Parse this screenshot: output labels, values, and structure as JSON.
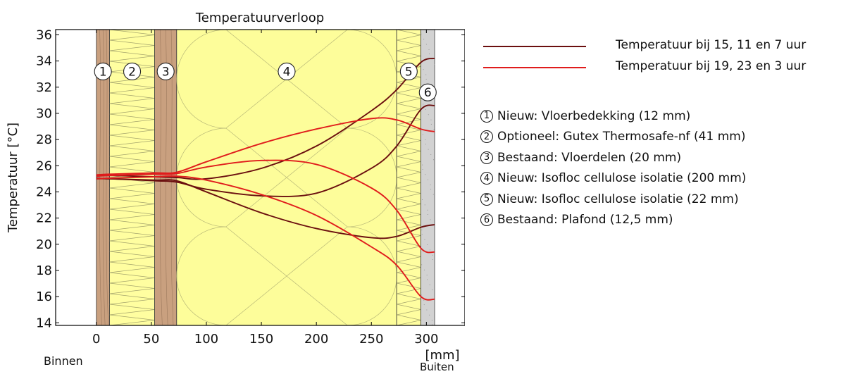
{
  "chart_data": {
    "type": "line",
    "title": "Temperatuurverloop",
    "xlabel": "[mm]",
    "ylabel": "Temperatuur [°C]",
    "xlim": [
      -37,
      335
    ],
    "ylim": [
      13.8,
      36.4
    ],
    "xticks": [
      0,
      50,
      100,
      150,
      200,
      250,
      300
    ],
    "yticks": [
      14,
      16,
      18,
      20,
      22,
      24,
      26,
      28,
      30,
      32,
      34,
      36
    ],
    "inner_label": "Binnen",
    "outer_label": "Buiten",
    "grid": false,
    "legend_position": "right",
    "legend": [
      {
        "label": "Temperatuur bij 15, 11 en 7 uur",
        "color": "#6b0f0f"
      },
      {
        "label": "Temperatuur bij 19, 23 en 3 uur",
        "color": "#e01c1c"
      }
    ],
    "layers": [
      {
        "num": "1",
        "name": "Nieuw: Vloerbedekking (12 mm)",
        "x0": 0,
        "x1": 12,
        "kind": "wood",
        "label_y": 33.2
      },
      {
        "num": "2",
        "name": "Optioneel: Gutex Thermosafe-nf (41 mm)",
        "x0": 12,
        "x1": 53,
        "kind": "insulation",
        "label_y": 33.2
      },
      {
        "num": "3",
        "name": "Bestaand: Vloerdelen (20 mm)",
        "x0": 53,
        "x1": 73,
        "kind": "wood",
        "label_y": 33.2
      },
      {
        "num": "4",
        "name": "Nieuw: Isofloc cellulose isolatie (200 mm)",
        "x0": 73,
        "x1": 273,
        "kind": "cellulose",
        "label_y": 33.2
      },
      {
        "num": "5",
        "name": "Nieuw: Isofloc cellulose isolatie (22 mm)",
        "x0": 273,
        "x1": 295,
        "kind": "insulation",
        "label_y": 33.2
      },
      {
        "num": "6",
        "name": "Bestaand: Plafond (12,5 mm)",
        "x0": 295,
        "x1": 307.5,
        "kind": "plaster",
        "label_y": 31.6
      }
    ],
    "series": [
      {
        "group": "dark",
        "color": "#6b0f0f",
        "x": [
          0,
          12,
          53,
          73,
          100,
          150,
          200,
          250,
          273,
          295,
          307.5
        ],
        "y": [
          25.2,
          25.25,
          25.15,
          25.1,
          25.0,
          25.8,
          27.5,
          30.2,
          31.8,
          33.9,
          34.2
        ]
      },
      {
        "group": "dark",
        "color": "#6b0f0f",
        "x": [
          0,
          12,
          53,
          73,
          100,
          150,
          200,
          250,
          273,
          295,
          307.5
        ],
        "y": [
          25.0,
          25.0,
          24.85,
          24.75,
          24.2,
          23.7,
          23.9,
          25.8,
          27.5,
          30.3,
          30.6
        ]
      },
      {
        "group": "dark",
        "color": "#6b0f0f",
        "x": [
          0,
          12,
          53,
          73,
          100,
          150,
          200,
          250,
          273,
          295,
          307.5
        ],
        "y": [
          25.05,
          25.0,
          24.9,
          24.85,
          24.0,
          22.4,
          21.2,
          20.5,
          20.6,
          21.3,
          21.5
        ]
      },
      {
        "group": "bright",
        "color": "#e01c1c",
        "x": [
          0,
          12,
          53,
          73,
          100,
          150,
          200,
          250,
          273,
          295,
          307.5
        ],
        "y": [
          25.3,
          25.35,
          25.45,
          25.5,
          26.3,
          27.7,
          28.8,
          29.6,
          29.5,
          28.8,
          28.6
        ]
      },
      {
        "group": "bright",
        "color": "#e01c1c",
        "x": [
          0,
          12,
          53,
          73,
          100,
          150,
          200,
          250,
          273,
          295,
          307.5
        ],
        "y": [
          25.2,
          25.25,
          25.35,
          25.4,
          25.9,
          26.4,
          26.1,
          24.3,
          22.6,
          19.7,
          19.4
        ]
      },
      {
        "group": "bright",
        "color": "#e01c1c",
        "x": [
          0,
          12,
          53,
          73,
          100,
          150,
          200,
          250,
          273,
          295,
          307.5
        ],
        "y": [
          25.0,
          25.05,
          25.15,
          25.2,
          24.9,
          23.8,
          22.2,
          19.8,
          18.4,
          16.0,
          15.8
        ]
      }
    ]
  },
  "colors": {
    "wood": "#c9a07f",
    "insulation": "#fffea0",
    "cellulose": "#fdfd9a",
    "plaster": "#d2d2d2"
  }
}
